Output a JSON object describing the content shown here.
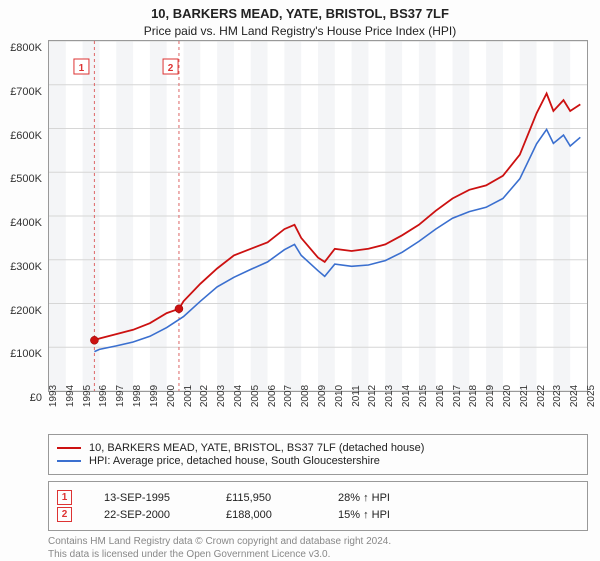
{
  "title": "10, BARKERS MEAD, YATE, BRISTOL, BS37 7LF",
  "subtitle": "Price paid vs. HM Land Registry's House Price Index (HPI)",
  "chart": {
    "type": "line",
    "background_color": "#ffffff",
    "band_color": "#f4f5f7",
    "grid_color": "#d6d6d6",
    "ylim": [
      0,
      800000
    ],
    "ytick_step": 100000,
    "ytick_labels": [
      "£0",
      "£100K",
      "£200K",
      "£300K",
      "£400K",
      "£500K",
      "£600K",
      "£700K",
      "£800K"
    ],
    "xlim": [
      1993,
      2025
    ],
    "xticks": [
      1993,
      1994,
      1995,
      1996,
      1997,
      1998,
      1999,
      2000,
      2001,
      2002,
      2003,
      2004,
      2005,
      2006,
      2007,
      2008,
      2009,
      2010,
      2011,
      2012,
      2013,
      2014,
      2015,
      2016,
      2017,
      2018,
      2019,
      2020,
      2021,
      2022,
      2023,
      2024,
      2025
    ],
    "series": [
      {
        "id": "price",
        "label": "10, BARKERS MEAD, YATE, BRISTOL, BS37 7LF (detached house)",
        "color": "#cc1111",
        "line_width": 1.8,
        "x": [
          1995.7,
          1996,
          1997,
          1998,
          1999,
          2000,
          2000.73,
          2001,
          2002,
          2003,
          2004,
          2005,
          2006,
          2007,
          2007.6,
          2008,
          2009,
          2009.4,
          2010,
          2011,
          2012,
          2013,
          2014,
          2015,
          2016,
          2017,
          2018,
          2019,
          2020,
          2021,
          2022,
          2022.6,
          2023,
          2023.6,
          2024,
          2024.6
        ],
        "y": [
          115950,
          120000,
          130000,
          140000,
          155000,
          178000,
          188000,
          205000,
          245000,
          280000,
          310000,
          325000,
          340000,
          370000,
          380000,
          350000,
          305000,
          295000,
          325000,
          320000,
          325000,
          335000,
          356000,
          380000,
          412000,
          440000,
          460000,
          470000,
          492000,
          540000,
          635000,
          680000,
          640000,
          665000,
          640000,
          655000
        ]
      },
      {
        "id": "hpi",
        "label": "HPI: Average price, detached house, South Gloucestershire",
        "color": "#3a6fcf",
        "line_width": 1.6,
        "x": [
          1995.7,
          1996,
          1997,
          1998,
          1999,
          2000,
          2001,
          2002,
          2003,
          2004,
          2005,
          2006,
          2007,
          2007.6,
          2008,
          2009,
          2009.4,
          2010,
          2011,
          2012,
          2013,
          2014,
          2015,
          2016,
          2017,
          2018,
          2019,
          2020,
          2021,
          2022,
          2022.6,
          2023,
          2023.6,
          2024,
          2024.6
        ],
        "y": [
          90000,
          95000,
          103000,
          112000,
          125000,
          145000,
          170000,
          205000,
          238000,
          260000,
          278000,
          295000,
          323000,
          335000,
          310000,
          275000,
          262000,
          290000,
          285000,
          288000,
          298000,
          317000,
          342000,
          370000,
          395000,
          410000,
          420000,
          440000,
          485000,
          565000,
          598000,
          566000,
          585000,
          560000,
          580000
        ]
      }
    ],
    "markers": [
      {
        "num": "1",
        "x": 1995.7,
        "y": 115950,
        "date": "13-SEP-1995",
        "price": "£115,950",
        "diff": "28% ↑ HPI",
        "line_x": 1994.9
      },
      {
        "num": "2",
        "x": 2000.73,
        "y": 188000,
        "date": "22-SEP-2000",
        "price": "£188,000",
        "diff": "15% ↑ HPI",
        "line_x": 2000.2
      }
    ],
    "label_fontsize": 11,
    "tick_fontsize": 10
  },
  "footer": {
    "line1": "Contains HM Land Registry data © Crown copyright and database right 2024.",
    "line2": "This data is licensed under the Open Government Licence v3.0."
  }
}
